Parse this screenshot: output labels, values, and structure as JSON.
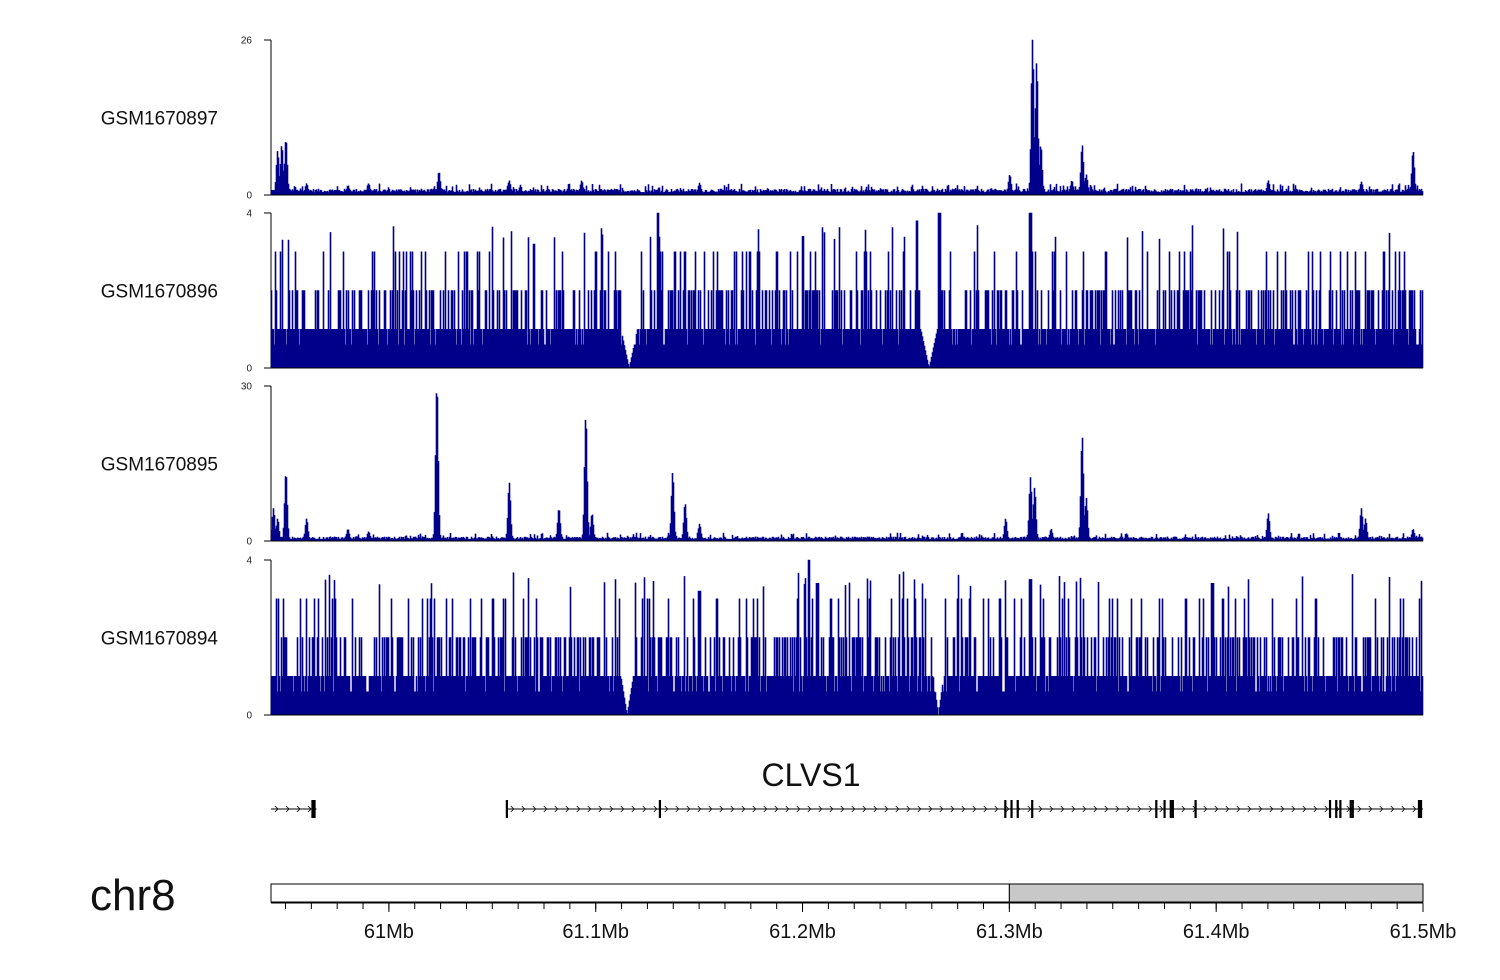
{
  "chart_data": {
    "type": "area",
    "title": "",
    "chromosome": "chr8",
    "x_range_mb": [
      60.943,
      61.5
    ],
    "x_ticks_mb": [
      61.0,
      61.1,
      61.2,
      61.3,
      61.4,
      61.5
    ],
    "x_tick_labels": [
      "61Mb",
      "61.1Mb",
      "61.2Mb",
      "61.3Mb",
      "61.4Mb",
      "61.5Mb"
    ],
    "series_color": "#00008B",
    "tracks": [
      {
        "name": "GSM1670897",
        "ymax": 26,
        "ymax_label": "26",
        "ymin_label": "0",
        "baseline": 0.4,
        "noise": 0.6,
        "kind": "peaky",
        "peaks": [
          [
            60.946,
            7
          ],
          [
            60.948,
            8
          ],
          [
            60.95,
            9
          ],
          [
            60.96,
            1.5
          ],
          [
            60.98,
            1.2
          ],
          [
            60.99,
            1.5
          ],
          [
            61.024,
            3.5
          ],
          [
            61.058,
            2
          ],
          [
            61.093,
            2
          ],
          [
            61.15,
            1.6
          ],
          [
            61.3,
            3
          ],
          [
            61.311,
            26
          ],
          [
            61.313,
            22
          ],
          [
            61.315,
            8
          ],
          [
            61.33,
            2
          ],
          [
            61.335,
            8
          ],
          [
            61.337,
            3
          ],
          [
            61.425,
            2
          ],
          [
            61.47,
            1.8
          ],
          [
            61.495,
            7
          ]
        ]
      },
      {
        "name": "GSM1670896",
        "ymax": 4,
        "ymax_label": "4",
        "ymin_label": "0",
        "baseline": 1,
        "noise": 0,
        "kind": "discrete",
        "peaks": [
          [
            61.13,
            4
          ],
          [
            61.2,
            3.4
          ],
          [
            61.255,
            3.8
          ],
          [
            61.266,
            4
          ],
          [
            61.31,
            4
          ],
          [
            61.07,
            3.2
          ]
        ],
        "gaps": [
          [
            61.112,
            61.12
          ],
          [
            61.257,
            61.265
          ]
        ]
      },
      {
        "name": "GSM1670895",
        "ymax": 30,
        "ymax_label": "30",
        "ymin_label": "0",
        "baseline": 0.3,
        "noise": 0.5,
        "kind": "peaky",
        "peaks": [
          [
            60.944,
            6
          ],
          [
            60.946,
            4
          ],
          [
            60.95,
            13
          ],
          [
            60.96,
            4
          ],
          [
            60.98,
            2
          ],
          [
            60.99,
            1.5
          ],
          [
            61.023,
            30
          ],
          [
            61.058,
            11
          ],
          [
            61.082,
            6
          ],
          [
            61.095,
            24
          ],
          [
            61.098,
            5
          ],
          [
            61.137,
            13
          ],
          [
            61.143,
            7
          ],
          [
            61.15,
            3
          ],
          [
            61.298,
            4
          ],
          [
            61.31,
            12
          ],
          [
            61.312,
            10
          ],
          [
            61.32,
            2
          ],
          [
            61.335,
            20
          ],
          [
            61.337,
            8
          ],
          [
            61.425,
            5
          ],
          [
            61.47,
            6
          ],
          [
            61.472,
            4
          ],
          [
            61.495,
            2
          ]
        ]
      },
      {
        "name": "GSM1670894",
        "ymax": 4,
        "ymax_label": "4",
        "ymin_label": "0",
        "baseline": 1,
        "noise": 0,
        "kind": "discrete",
        "peaks": [
          [
            61.15,
            3.2
          ],
          [
            61.203,
            4
          ],
          [
            61.207,
            3.4
          ],
          [
            61.31,
            3.5
          ],
          [
            61.398,
            3.4
          ],
          [
            61.05,
            3
          ]
        ],
        "gaps": [
          [
            61.112,
            61.118
          ],
          [
            61.263,
            61.268
          ]
        ]
      }
    ],
    "gene": {
      "name": "CLVS1",
      "strand": "+",
      "segments": [
        [
          60.943,
          60.965
        ],
        [
          61.057,
          61.5
        ]
      ],
      "exons_mb": [
        60.963,
        60.964,
        61.057,
        61.131,
        61.298,
        61.301,
        61.304,
        61.311,
        61.371,
        61.375,
        61.378,
        61.379,
        61.39,
        61.455,
        61.458,
        61.46,
        61.465,
        61.466,
        61.498,
        61.499
      ]
    },
    "ideogram": {
      "white_range_mb": [
        60.943,
        61.3
      ],
      "gray_range_mb": [
        61.3,
        61.5
      ]
    }
  }
}
